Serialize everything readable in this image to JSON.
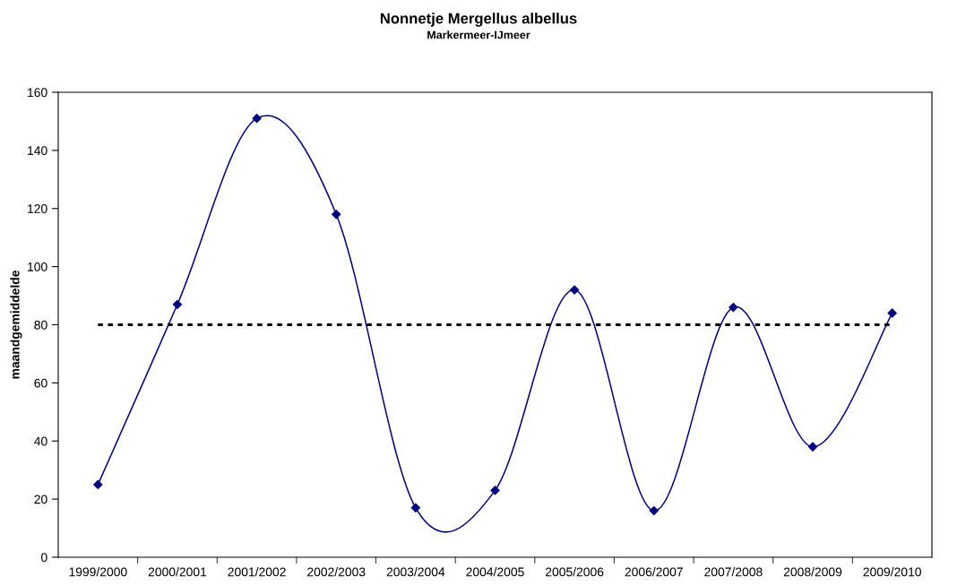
{
  "chart_data": {
    "type": "line",
    "title": "Nonnetje Mergellus albellus",
    "subtitle": "Markermeer-IJmeer",
    "ylabel": "maandgemiddelde",
    "categories": [
      "1999/2000",
      "2000/2001",
      "2001/2002",
      "2002/2003",
      "2003/2004",
      "2004/2005",
      "2005/2006",
      "2006/2007",
      "2007/2008",
      "2008/2009",
      "2009/2010"
    ],
    "series": [
      {
        "color": "#000080",
        "values": [
          25,
          87,
          151,
          118,
          17,
          23,
          92,
          16,
          86,
          38,
          84
        ]
      }
    ],
    "ylim": [
      0,
      160
    ],
    "yticks": [
      0,
      20,
      40,
      60,
      80,
      100,
      120,
      140,
      160
    ],
    "ref_lines": [
      {
        "axis": "y",
        "value": 80,
        "color": "#000000",
        "line_style": "dotted"
      }
    ],
    "marker": "diamond",
    "line_style": "solid",
    "grid": false,
    "legend": false
  }
}
